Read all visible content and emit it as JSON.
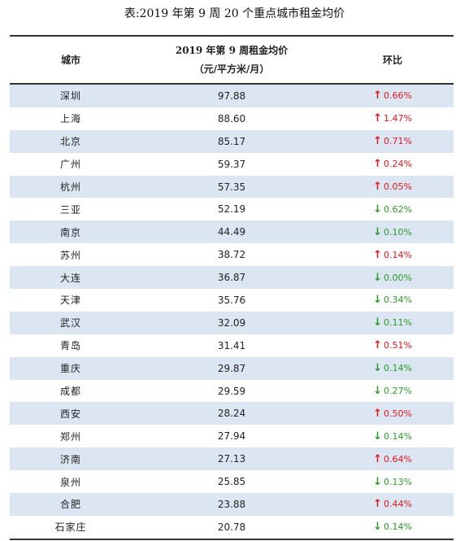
{
  "caption": "表:2019 年第 9 周 20 个重点城市租金均价",
  "header": {
    "city": "城市",
    "price_line1": "2019 年第 9 周租金均价",
    "price_line2": "（元/平方米/月）",
    "change": "环比"
  },
  "colors": {
    "up": "#e0161c",
    "down": "#2a9a2a",
    "row_shade": "#dce6f2"
  },
  "rows": [
    {
      "city": "深圳",
      "price": "97.88",
      "dir": "up",
      "change": "0.66%"
    },
    {
      "city": "上海",
      "price": "88.60",
      "dir": "up",
      "change": "1.47%"
    },
    {
      "city": "北京",
      "price": "85.17",
      "dir": "up",
      "change": "0.71%"
    },
    {
      "city": "广州",
      "price": "59.37",
      "dir": "up",
      "change": "0.24%"
    },
    {
      "city": "杭州",
      "price": "57.35",
      "dir": "up",
      "change": "0.05%"
    },
    {
      "city": "三亚",
      "price": "52.19",
      "dir": "down",
      "change": "0.62%"
    },
    {
      "city": "南京",
      "price": "44.49",
      "dir": "down",
      "change": "0.10%"
    },
    {
      "city": "苏州",
      "price": "38.72",
      "dir": "up",
      "change": "0.14%"
    },
    {
      "city": "大连",
      "price": "36.87",
      "dir": "down",
      "change": "0.00%"
    },
    {
      "city": "天津",
      "price": "35.76",
      "dir": "down",
      "change": "0.34%"
    },
    {
      "city": "武汉",
      "price": "32.09",
      "dir": "down",
      "change": "0.11%"
    },
    {
      "city": "青岛",
      "price": "31.41",
      "dir": "up",
      "change": "0.51%"
    },
    {
      "city": "重庆",
      "price": "29.87",
      "dir": "down",
      "change": "0.14%"
    },
    {
      "city": "成都",
      "price": "29.59",
      "dir": "down",
      "change": "0.27%"
    },
    {
      "city": "西安",
      "price": "28.24",
      "dir": "up",
      "change": "0.50%"
    },
    {
      "city": "郑州",
      "price": "27.94",
      "dir": "down",
      "change": "0.14%"
    },
    {
      "city": "济南",
      "price": "27.13",
      "dir": "up",
      "change": "0.64%"
    },
    {
      "city": "泉州",
      "price": "25.85",
      "dir": "down",
      "change": "0.13%"
    },
    {
      "city": "合肥",
      "price": "23.88",
      "dir": "up",
      "change": "0.44%"
    },
    {
      "city": "石家庄",
      "price": "20.78",
      "dir": "down",
      "change": "0.14%"
    }
  ]
}
